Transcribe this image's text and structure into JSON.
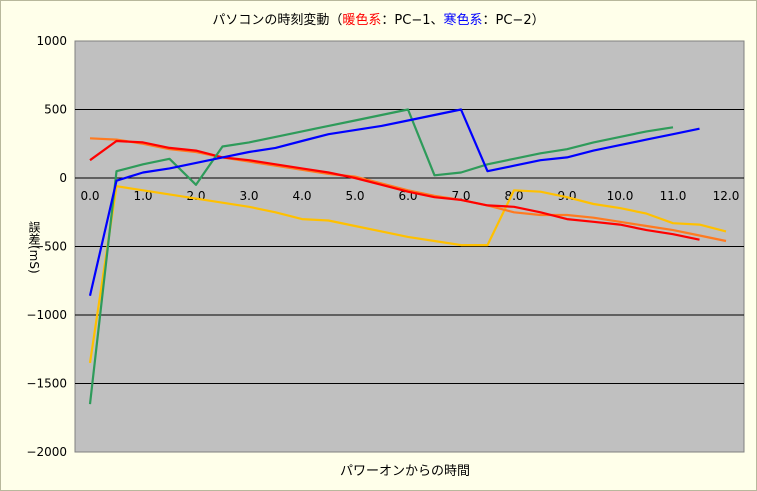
{
  "chart_data": {
    "type": "line",
    "title": {
      "prefix": "パソコンの時刻変動（",
      "warm_label": "暖色系",
      "warm_suffix": "：PC−1、",
      "cool_label": "寒色系",
      "cool_suffix": "：PC−2）"
    },
    "xlabel": "パワーオンからの時間",
    "ylabel": "誤差(mS)",
    "xlim": [
      0,
      12.3
    ],
    "ylim": [
      -2000,
      1000
    ],
    "x_ticks": [
      "0.0",
      "1.0",
      "2.0",
      "3.0",
      "4.0",
      "5.0",
      "6.0",
      "7.0",
      "8.0",
      "9.0",
      "10.0",
      "11.0",
      "12.0"
    ],
    "y_ticks": [
      "1000",
      "500",
      "0",
      "-500",
      "-1000",
      "-1500",
      "-2000"
    ],
    "grid": "horizontal",
    "colors": {
      "plot_bg": "#c0c0c0",
      "warm": "#ff0000",
      "cool": "#0000ff"
    },
    "series": [
      {
        "color": "#ffc000",
        "x": [
          0,
          0.5,
          1.0,
          1.5,
          2.0,
          2.5,
          3.0,
          3.5,
          4.0,
          4.5,
          5.0,
          5.5,
          6.0,
          6.5,
          7.0,
          7.5,
          8.0,
          8.5,
          9.0,
          9.5,
          10.0,
          10.5,
          11.0,
          11.5,
          12.0
        ],
        "y": [
          -1350,
          -60,
          -90,
          -120,
          -150,
          -180,
          -210,
          -250,
          -300,
          -310,
          -350,
          -390,
          -430,
          -460,
          -490,
          -490,
          -90,
          -100,
          -140,
          -190,
          -220,
          -260,
          -330,
          -340,
          -390
        ]
      },
      {
        "color": "#ff7a20",
        "x": [
          0,
          0.5,
          1.0,
          1.5,
          2.0,
          2.5,
          3.0,
          3.5,
          4.0,
          4.5,
          5.0,
          5.5,
          6.0,
          6.5,
          7.0,
          7.5,
          8.0,
          8.5,
          9.0,
          9.5,
          10.0,
          10.5,
          11.0,
          11.5,
          12.0
        ],
        "y": [
          290,
          280,
          250,
          210,
          190,
          150,
          120,
          90,
          60,
          30,
          10,
          -40,
          -90,
          -130,
          -160,
          -200,
          -250,
          -270,
          -270,
          -290,
          -320,
          -350,
          -380,
          -420,
          -460
        ]
      },
      {
        "color": "#ff0000",
        "x": [
          0,
          0.5,
          1.0,
          1.5,
          2.0,
          2.5,
          3.0,
          3.5,
          4.0,
          4.5,
          5.0,
          5.5,
          6.0,
          6.5,
          7.0,
          7.5,
          8.0,
          8.5,
          9.0,
          9.5,
          10.0,
          10.5,
          11.0,
          11.5
        ],
        "y": [
          130,
          270,
          260,
          220,
          200,
          150,
          130,
          100,
          70,
          40,
          0,
          -50,
          -100,
          -140,
          -160,
          -200,
          -210,
          -250,
          -300,
          -320,
          -340,
          -380,
          -410,
          -450
        ]
      },
      {
        "color": "#2e9b5a",
        "x": [
          0,
          0.5,
          1.0,
          1.5,
          2.0,
          2.5,
          3.0,
          3.5,
          4.0,
          4.5,
          5.0,
          5.5,
          6.0,
          6.5,
          7.0,
          7.5,
          8.0,
          8.5,
          9.0,
          9.5,
          10.0,
          10.5,
          11.0
        ],
        "y": [
          -1650,
          50,
          100,
          140,
          -50,
          230,
          260,
          300,
          340,
          380,
          420,
          460,
          500,
          20,
          40,
          100,
          140,
          180,
          210,
          260,
          300,
          340,
          370
        ]
      },
      {
        "color": "#0000ff",
        "x": [
          0,
          0.5,
          1.0,
          1.5,
          2.0,
          2.5,
          3.0,
          3.5,
          4.0,
          4.5,
          5.0,
          5.5,
          6.0,
          6.5,
          7.0,
          7.5,
          8.0,
          8.5,
          9.0,
          9.5,
          10.0,
          10.5,
          11.0,
          11.5
        ],
        "y": [
          -860,
          -20,
          40,
          70,
          110,
          150,
          190,
          220,
          270,
          320,
          350,
          380,
          420,
          460,
          500,
          50,
          90,
          130,
          150,
          200,
          240,
          280,
          320,
          360
        ]
      }
    ]
  }
}
